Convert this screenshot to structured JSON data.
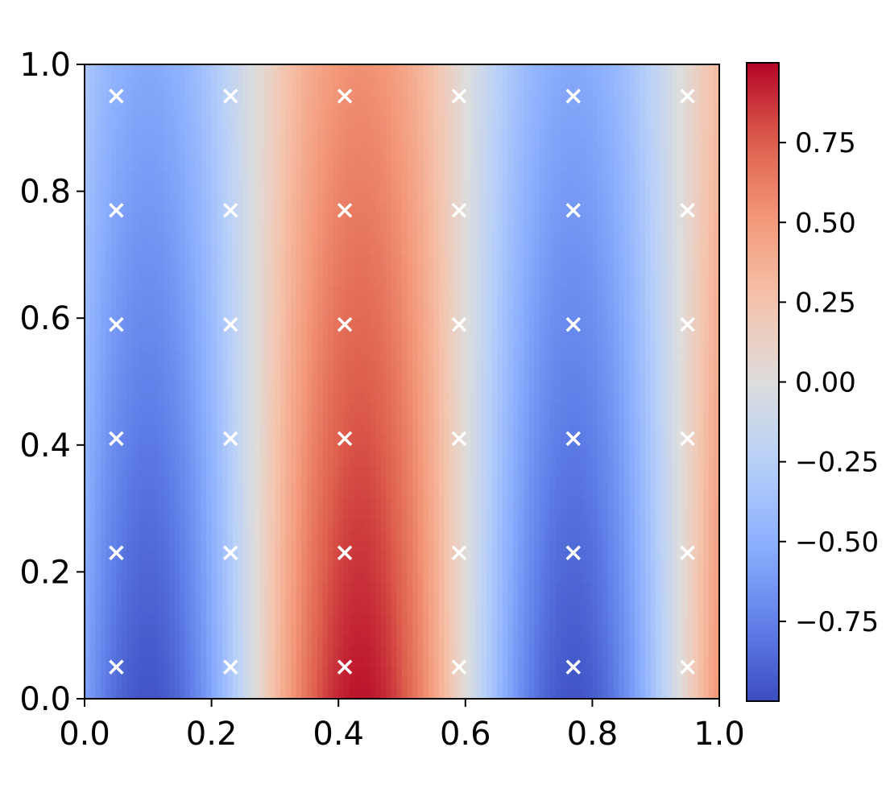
{
  "chart_data": {
    "type": "heatmap",
    "title": "",
    "xlabel": "",
    "ylabel": "",
    "xlim": [
      0.0,
      1.0
    ],
    "ylim": [
      0.0,
      1.0
    ],
    "x_ticks": [
      "0.0",
      "0.2",
      "0.4",
      "0.6",
      "0.8",
      "1.0"
    ],
    "y_ticks": [
      "0.0",
      "0.2",
      "0.4",
      "0.6",
      "0.8",
      "1.0"
    ],
    "colormap": "coolwarm",
    "colorbar": {
      "range": [
        -1.0,
        1.0
      ],
      "ticks": [
        {
          "value": 0.75,
          "label": "0.75"
        },
        {
          "value": 0.5,
          "label": "0.50"
        },
        {
          "value": 0.25,
          "label": "0.25"
        },
        {
          "value": 0.0,
          "label": "0.00"
        },
        {
          "value": -0.25,
          "label": "−0.25"
        },
        {
          "value": -0.5,
          "label": "−0.50"
        },
        {
          "value": -0.75,
          "label": "−0.75"
        }
      ]
    },
    "field_description": "Smooth field varying mainly along x: minima near x≈0.1 and x≈0.77, maxima near x≈0.43 (strongest near y≈0) and rising again at x=1.0; contrast fades toward y=1.",
    "markers": {
      "symbol": "x",
      "color": "#ffffff",
      "x": [
        0.05,
        0.23,
        0.41,
        0.59,
        0.77,
        0.95
      ],
      "y": [
        0.05,
        0.23,
        0.41,
        0.59,
        0.77,
        0.95
      ]
    },
    "grid": false
  }
}
